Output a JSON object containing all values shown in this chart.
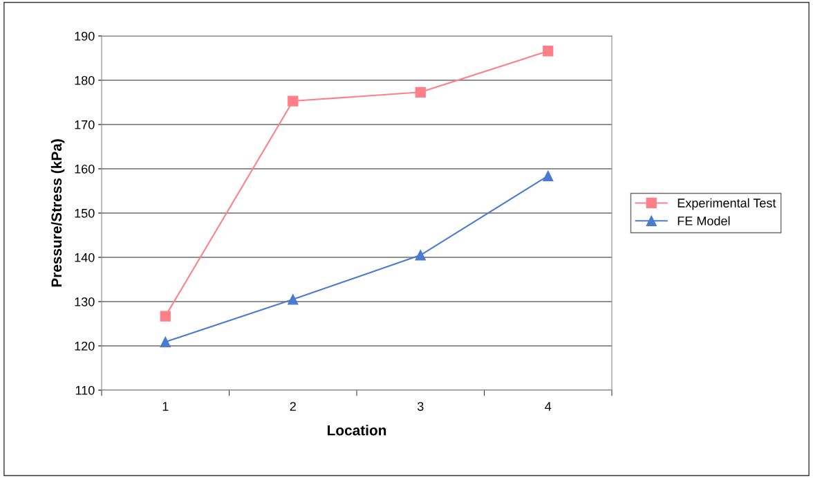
{
  "chart_data": {
    "type": "line",
    "xlabel": "Location",
    "ylabel": "Pressure/Stress (kPa)",
    "categories": [
      "1",
      "2",
      "3",
      "4"
    ],
    "series": [
      {
        "name": "Experimental Test",
        "color": "#ff7f88",
        "marker": "square",
        "values": [
          126.7,
          175.3,
          177.3,
          186.6
        ]
      },
      {
        "name": "FE Model",
        "color": "#4a7bd0",
        "marker": "triangle",
        "values": [
          120.9,
          130.5,
          140.5,
          158.4
        ]
      }
    ],
    "ylim": [
      110,
      190
    ],
    "yticks": [
      110,
      120,
      130,
      140,
      150,
      160,
      170,
      180,
      190
    ],
    "grid": "y",
    "legend": "right"
  }
}
